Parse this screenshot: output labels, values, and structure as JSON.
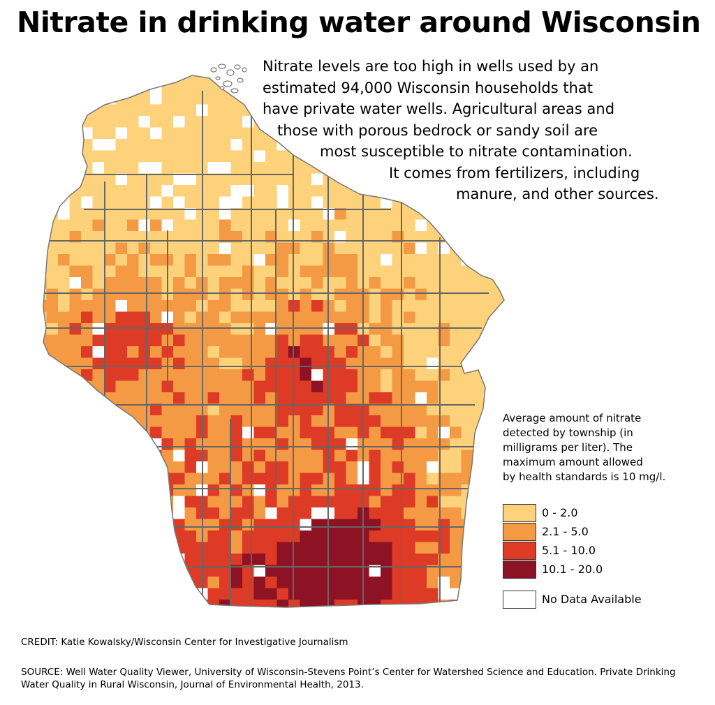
{
  "title": "Nitrate in drinking water around Wisconsin",
  "blurb_lines": [
    "Nitrate levels are too high in wells used by an",
    "estimated 94,000 Wisconsin households that",
    "have private water wells. Agricultural areas and",
    "those with porous bedrock or sandy soil are",
    "most susceptible to nitrate contamination.",
    "It comes from fertilizers, including",
    "manure, and other sources."
  ],
  "legend_note_lines": [
    "Average amount of nitrate",
    "detected by township (in",
    "milligrams per liter). The",
    "maximum amount allowed",
    "by health standards is 10 mg/l."
  ],
  "legend": [
    {
      "label": "0 - 2.0",
      "color": "#fdd27a"
    },
    {
      "label": "2.1 - 5.0",
      "color": "#f49a45"
    },
    {
      "label": "5.1 - 10.0",
      "color": "#dd3b26"
    },
    {
      "label": "10.1 - 20.0",
      "color": "#8c1224"
    },
    {
      "label": "No Data Available",
      "color": "#ffffff"
    }
  ],
  "credit": "CREDIT: Katie Kowalsky/Wisconsin Center for Investigative Journalism",
  "source": "SOURCE: Well Water Quality Viewer, University of Wisconsin-Stevens Point’s Center for Watershed Science and Education. Private Drinking Water Quality in Rural Wisconsin, Journal of Environmental Health, 2013.",
  "colors": {
    "level_0_2": "#fdd27a",
    "level_2_5": "#f49a45",
    "level_5_10": "#dd3b26",
    "level_10_20": "#8c1224",
    "no_data": "#ffffff",
    "county_border": "#666666"
  }
}
